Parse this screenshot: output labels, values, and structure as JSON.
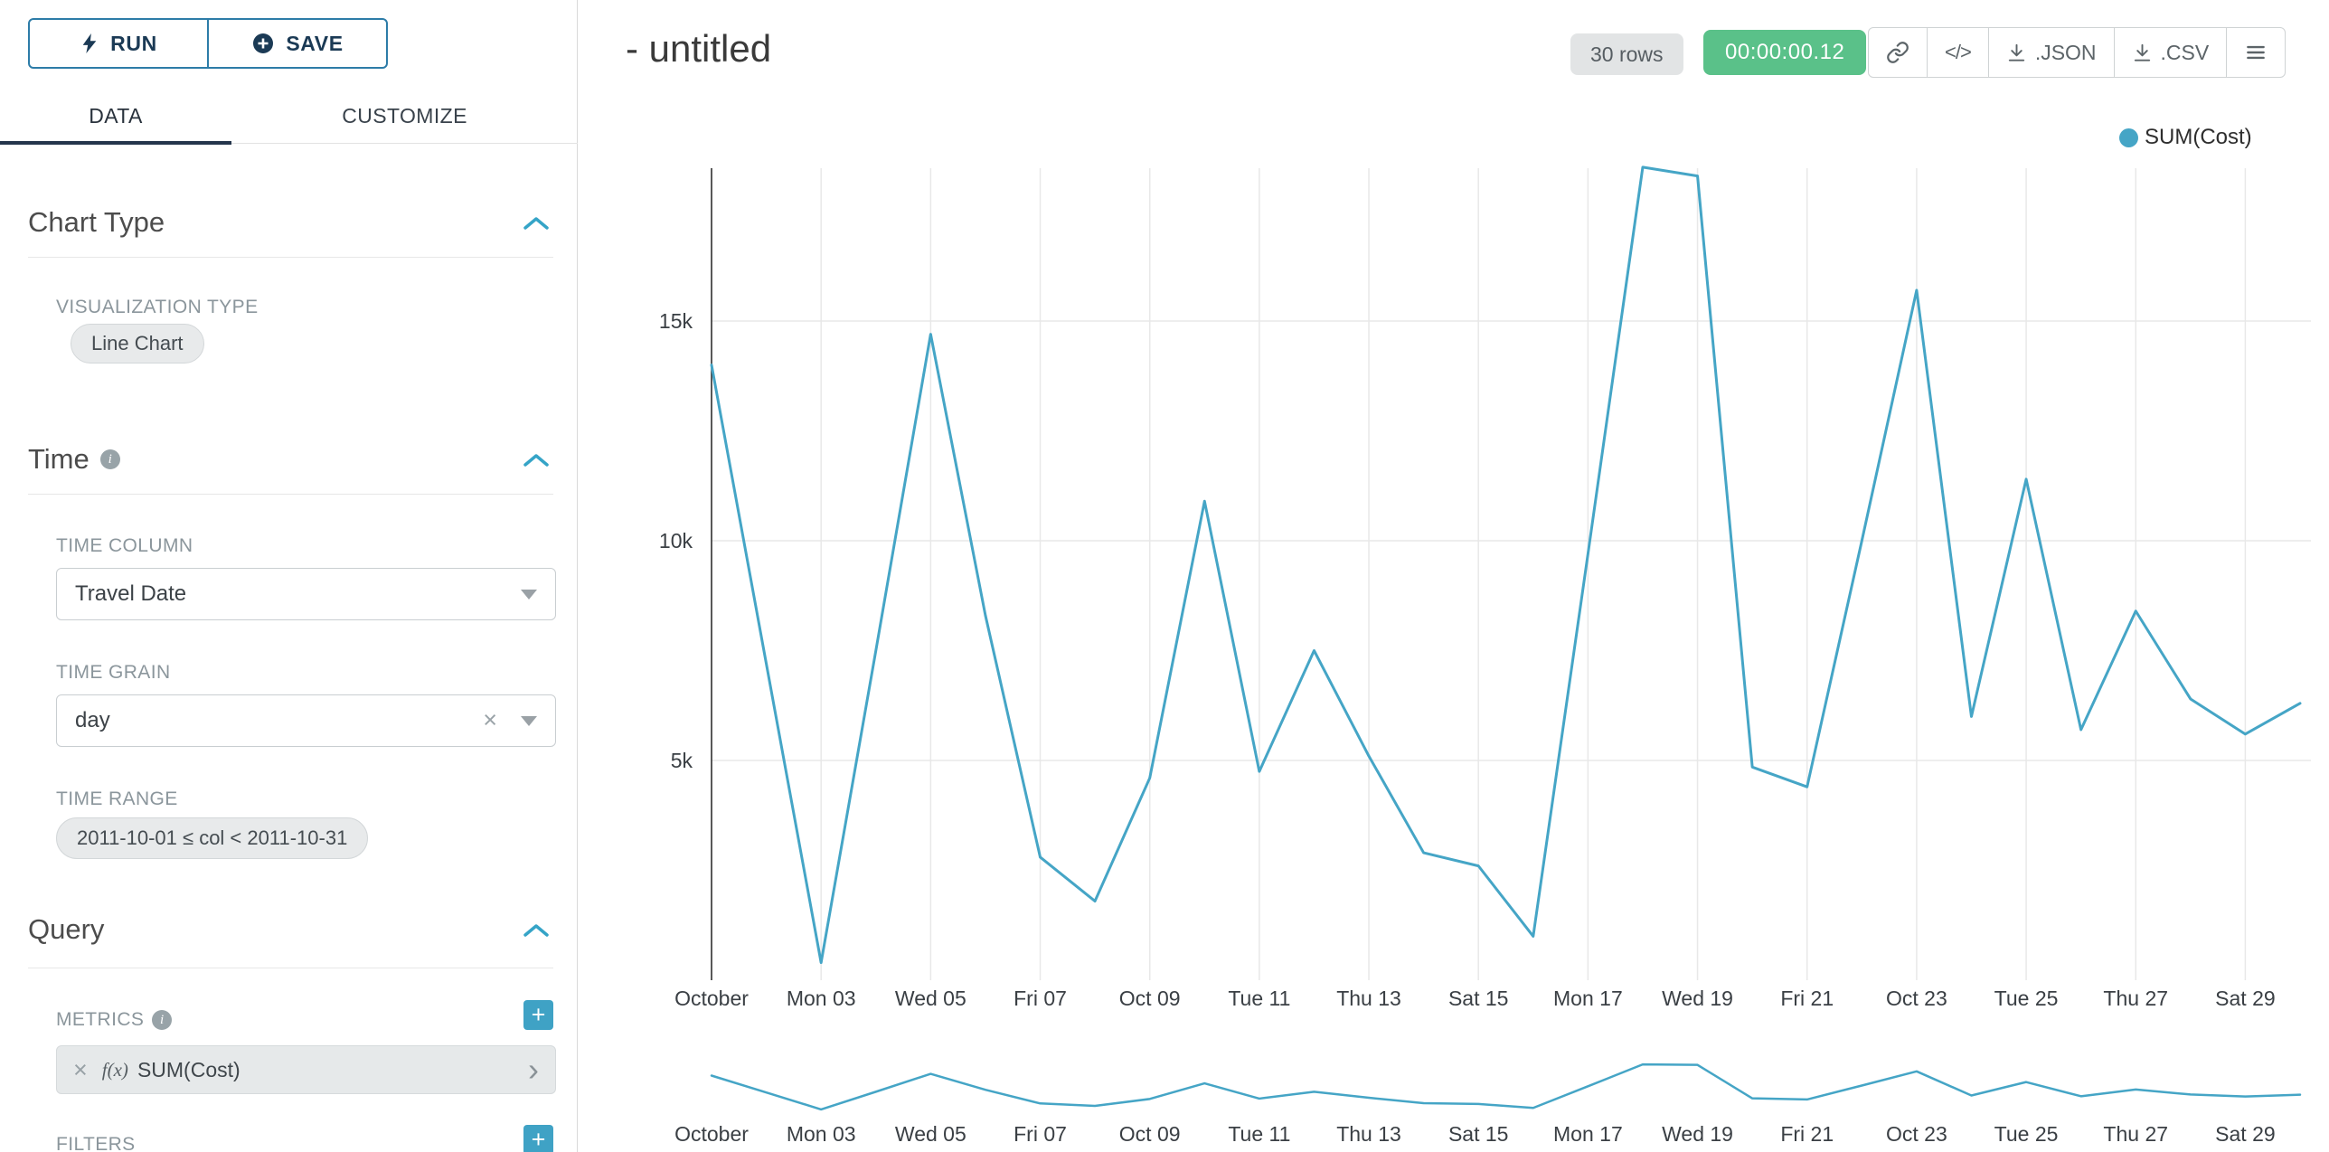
{
  "colors": {
    "accent_teal": "#35a4c7",
    "series_line": "#45a5c6",
    "success_green": "#5ac189",
    "button_border_blue": "#2d7ca8",
    "navy_text": "#1b3a55"
  },
  "icons": {
    "plus_glyph": "+",
    "clear_glyph": "×",
    "chevron_right_glyph": "›",
    "code_glyph": "</>",
    "info_glyph": "i"
  },
  "sidebar": {
    "run_button": "RUN",
    "save_button": "SAVE",
    "tabs": {
      "data": "DATA",
      "customize": "CUSTOMIZE"
    },
    "chart_type_section": {
      "title": "Chart Type",
      "viz_label": "VISUALIZATION TYPE",
      "viz_value": "Line Chart"
    },
    "time_section": {
      "title": "Time",
      "column_label": "TIME COLUMN",
      "column_value": "Travel Date",
      "grain_label": "TIME GRAIN",
      "grain_value": "day",
      "range_label": "TIME RANGE",
      "range_value": "2011-10-01 ≤ col < 2011-10-31"
    },
    "query_section": {
      "title": "Query",
      "metrics_label": "METRICS",
      "metric_fn": "f(x)",
      "metric_value": "SUM(Cost)",
      "filters_label": "FILTERS"
    }
  },
  "header": {
    "title": "- untitled",
    "rows_badge": "30 rows",
    "timer": "00:00:00.12",
    "json_label": ".JSON",
    "csv_label": ".CSV"
  },
  "chart_data": {
    "type": "line",
    "title": "",
    "xlabel": "",
    "ylabel": "",
    "grid": true,
    "legend_position": "top-right",
    "has_context_mini_chart": true,
    "ylim": [
      0,
      18600
    ],
    "y_ticks": [
      {
        "value": 5000,
        "label": "5k"
      },
      {
        "value": 10000,
        "label": "10k"
      },
      {
        "value": 15000,
        "label": "15k"
      }
    ],
    "x": [
      "2011-10-01",
      "2011-10-02",
      "2011-10-03",
      "2011-10-04",
      "2011-10-05",
      "2011-10-06",
      "2011-10-07",
      "2011-10-08",
      "2011-10-09",
      "2011-10-10",
      "2011-10-11",
      "2011-10-12",
      "2011-10-13",
      "2011-10-14",
      "2011-10-15",
      "2011-10-16",
      "2011-10-17",
      "2011-10-18",
      "2011-10-19",
      "2011-10-20",
      "2011-10-21",
      "2011-10-22",
      "2011-10-23",
      "2011-10-24",
      "2011-10-25",
      "2011-10-26",
      "2011-10-27",
      "2011-10-28",
      "2011-10-29",
      "2011-10-30"
    ],
    "x_tick_labels": [
      "October",
      "Mon 03",
      "Wed 05",
      "Fri 07",
      "Oct 09",
      "Tue 11",
      "Thu 13",
      "Sat 15",
      "Mon 17",
      "Wed 19",
      "Fri 21",
      "Oct 23",
      "Tue 25",
      "Thu 27",
      "Sat 29"
    ],
    "x_tick_every": 2,
    "series": [
      {
        "name": "SUM(Cost)",
        "color": "#45a5c6",
        "values": [
          14000,
          7200,
          400,
          7500,
          14700,
          8300,
          2800,
          1800,
          4600,
          10900,
          4750,
          7500,
          5100,
          2900,
          2600,
          1000,
          9700,
          18500,
          18300,
          4850,
          4400,
          10000,
          15700,
          6000,
          11400,
          5700,
          8400,
          6400,
          5600,
          6300
        ]
      }
    ]
  }
}
